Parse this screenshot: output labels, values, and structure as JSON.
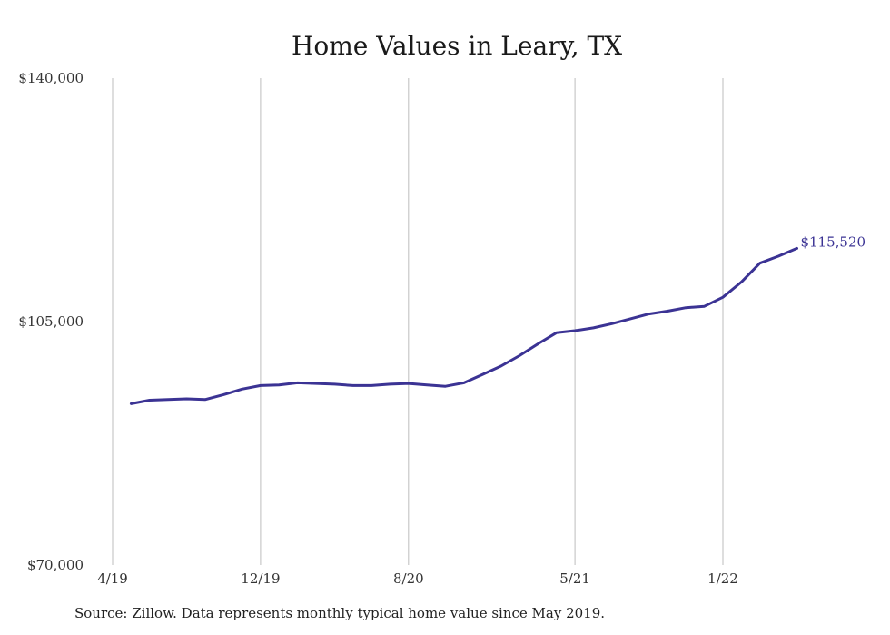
{
  "chart_data": {
    "type": "line",
    "title": "Home Values in Leary, TX",
    "xlabel": "",
    "ylabel": "",
    "ylim": [
      70000,
      140000
    ],
    "y_ticks": [
      "$70,000",
      "$105,000",
      "$140,000"
    ],
    "y_tick_values": [
      70000,
      105000,
      140000
    ],
    "x_ticks": [
      "4/19",
      "12/19",
      "8/20",
      "5/21",
      "1/22"
    ],
    "x_tick_months": [
      "2019-04",
      "2019-12",
      "2020-08",
      "2021-05",
      "2022-01"
    ],
    "grid": "vertical",
    "series": [
      {
        "color": "#3b3394",
        "x": [
          "2019-05",
          "2019-06",
          "2019-07",
          "2019-08",
          "2019-09",
          "2019-10",
          "2019-11",
          "2019-12",
          "2020-01",
          "2020-02",
          "2020-03",
          "2020-04",
          "2020-05",
          "2020-06",
          "2020-07",
          "2020-08",
          "2020-09",
          "2020-10",
          "2020-11",
          "2020-12",
          "2021-01",
          "2021-02",
          "2021-03",
          "2021-04",
          "2021-05",
          "2021-06",
          "2021-07",
          "2021-08",
          "2021-09",
          "2021-10",
          "2021-11",
          "2021-12",
          "2022-01",
          "2022-02",
          "2022-03",
          "2022-04",
          "2022-05"
        ],
        "values": [
          93200,
          93700,
          93800,
          93900,
          93800,
          94500,
          95300,
          95800,
          95900,
          96200,
          96100,
          96000,
          95800,
          95800,
          96000,
          96100,
          95900,
          95700,
          96200,
          97400,
          98600,
          100100,
          101800,
          103400,
          103700,
          104100,
          104700,
          105400,
          106100,
          106500,
          107000,
          107200,
          108500,
          110700,
          113400,
          114400,
          115520
        ]
      }
    ],
    "end_label": "$115,520",
    "end_label_color": "#3b3394",
    "source": "Source: Zillow. Data represents monthly typical home value since May 2019."
  }
}
